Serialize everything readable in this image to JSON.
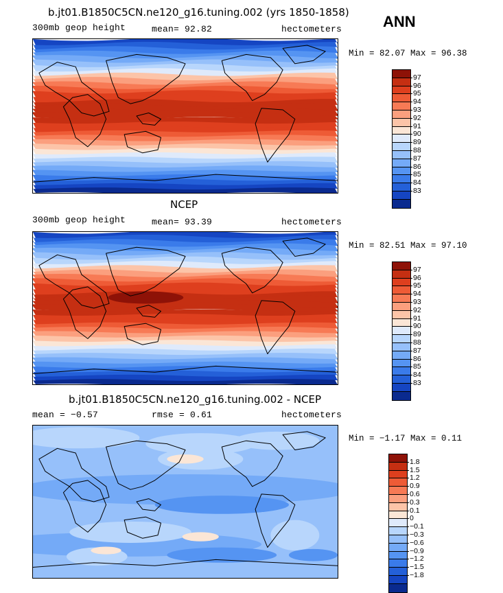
{
  "season": "ANN",
  "colors": {
    "main": [
      "#0a2a8f",
      "#1545c2",
      "#2460d8",
      "#3a7bea",
      "#5594f2",
      "#74aaf7",
      "#96c0fa",
      "#b8d6fc",
      "#dfeafb",
      "#fbe6d6",
      "#fcc4a8",
      "#fb9f7e",
      "#f77a55",
      "#ee5b36",
      "#de3f1e",
      "#c52f12",
      "#8e1207"
    ],
    "diff": [
      "#0a2a8f",
      "#1545c2",
      "#2460d8",
      "#3a7bea",
      "#5594f2",
      "#74aaf7",
      "#96c0fa",
      "#b8d6fc",
      "#dfeafb",
      "#fbe6d6",
      "#fcc4a8",
      "#fb9f7e",
      "#f77a55",
      "#ee5b36",
      "#de3f1e",
      "#c52f12",
      "#8e1207"
    ],
    "land_line": "#000000"
  },
  "panels": [
    {
      "title": "b.jt01.B1850C5CN.ne120_g16.tuning.002 (yrs 1850-1858)",
      "left_label": "300mb geop height",
      "mid_label": "mean=  92.82",
      "units": "hectometers",
      "minmax": "Min =  82.07 Max =  96.38",
      "kind": "main",
      "levels": [
        "97",
        "96",
        "95",
        "94",
        "93",
        "92",
        "91",
        "90",
        "89",
        "88",
        "87",
        "86",
        "85",
        "84",
        "83"
      ]
    },
    {
      "title": "NCEP",
      "left_label": "300mb geop height",
      "mid_label": "mean=  93.39",
      "units": "hectometers",
      "minmax": "Min =  82.51 Max =  97.10",
      "kind": "main",
      "levels": [
        "97",
        "96",
        "95",
        "94",
        "93",
        "92",
        "91",
        "90",
        "89",
        "88",
        "87",
        "86",
        "85",
        "84",
        "83"
      ]
    },
    {
      "title": "b.jt01.B1850C5CN.ne120_g16.tuning.002 - NCEP",
      "left_label": "mean =  −0.57",
      "mid_label": "rmse =   0.61",
      "units": "hectometers",
      "minmax": "Min =  −1.17 Max =   0.11",
      "kind": "diff",
      "levels": [
        "1.8",
        "1.5",
        "1.2",
        "0.9",
        "0.6",
        "0.3",
        "0.1",
        "0",
        "−0.1",
        "−0.3",
        "−0.6",
        "−0.9",
        "−1.2",
        "−1.5",
        "−1.8"
      ]
    }
  ]
}
